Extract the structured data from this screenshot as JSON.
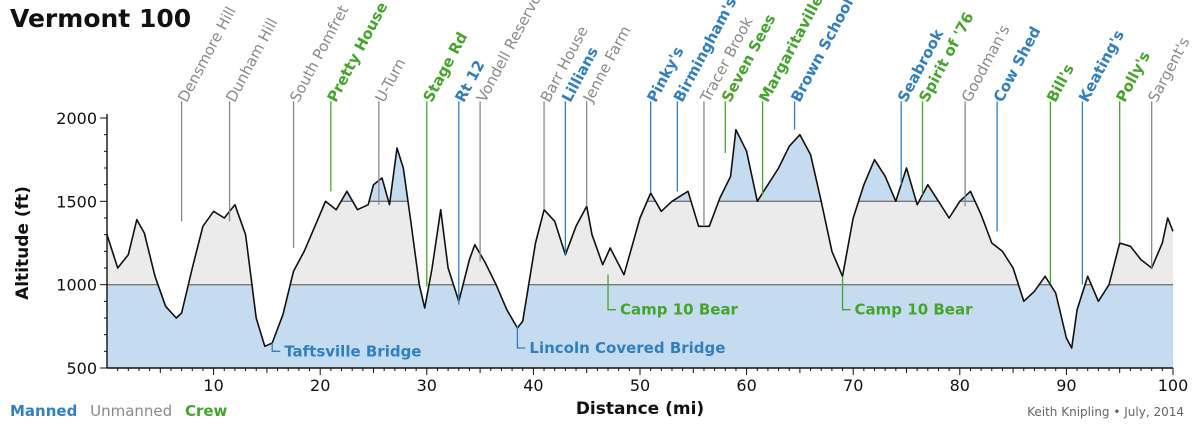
{
  "title": "Vermont 100",
  "legend": [
    {
      "label": "Manned",
      "color": "#2f7fc1"
    },
    {
      "label": "Unmanned",
      "color": "#8a8a8a"
    },
    {
      "label": "Crew",
      "color": "#44a52a"
    }
  ],
  "credit": "Keith Knipling • July, 2014",
  "chart_data": {
    "type": "area",
    "xlabel": "Distance  (mi)",
    "ylabel": "Altitude  (ft)",
    "xlim": [
      0,
      100
    ],
    "ylim": [
      500,
      2000
    ],
    "xticks": [
      10,
      20,
      30,
      40,
      50,
      60,
      70,
      80,
      90,
      100
    ],
    "yticks": [
      500,
      1000,
      1500,
      2000
    ],
    "bands": [
      1000,
      1500
    ],
    "colors": {
      "manned": "#2f7fc1",
      "unmanned": "#8a8a8a",
      "crew": "#44a52a",
      "below_band": "#c5dbef",
      "mid_band": "#ebebeb",
      "line": "#111111"
    },
    "profile": [
      [
        0,
        1300
      ],
      [
        1,
        1100
      ],
      [
        2,
        1180
      ],
      [
        2.8,
        1390
      ],
      [
        3.5,
        1310
      ],
      [
        4.5,
        1050
      ],
      [
        5.5,
        870
      ],
      [
        6.5,
        800
      ],
      [
        7,
        830
      ],
      [
        8,
        1100
      ],
      [
        9,
        1350
      ],
      [
        10,
        1440
      ],
      [
        11,
        1400
      ],
      [
        12,
        1480
      ],
      [
        13,
        1300
      ],
      [
        14,
        800
      ],
      [
        14.8,
        630
      ],
      [
        15.5,
        650
      ],
      [
        16.5,
        820
      ],
      [
        17.5,
        1080
      ],
      [
        18.5,
        1200
      ],
      [
        19.5,
        1350
      ],
      [
        20.5,
        1500
      ],
      [
        21.5,
        1450
      ],
      [
        22.5,
        1560
      ],
      [
        23.5,
        1450
      ],
      [
        24.5,
        1480
      ],
      [
        25,
        1600
      ],
      [
        25.8,
        1640
      ],
      [
        26.5,
        1480
      ],
      [
        27.2,
        1820
      ],
      [
        27.8,
        1700
      ],
      [
        28.5,
        1380
      ],
      [
        29.3,
        1000
      ],
      [
        29.8,
        860
      ],
      [
        30.5,
        1100
      ],
      [
        31.3,
        1450
      ],
      [
        32,
        1100
      ],
      [
        33,
        900
      ],
      [
        34,
        1150
      ],
      [
        34.5,
        1240
      ],
      [
        35.5,
        1130
      ],
      [
        36.5,
        1000
      ],
      [
        37.5,
        850
      ],
      [
        38.5,
        740
      ],
      [
        39,
        780
      ],
      [
        40.2,
        1250
      ],
      [
        41,
        1450
      ],
      [
        42,
        1380
      ],
      [
        43,
        1180
      ],
      [
        44,
        1350
      ],
      [
        45,
        1470
      ],
      [
        45.5,
        1300
      ],
      [
        46.5,
        1120
      ],
      [
        47.2,
        1220
      ],
      [
        48.5,
        1060
      ],
      [
        50,
        1400
      ],
      [
        51,
        1550
      ],
      [
        52,
        1440
      ],
      [
        53,
        1500
      ],
      [
        54.5,
        1560
      ],
      [
        55.5,
        1350
      ],
      [
        56.5,
        1350
      ],
      [
        57.5,
        1520
      ],
      [
        58.5,
        1650
      ],
      [
        59,
        1930
      ],
      [
        60,
        1800
      ],
      [
        61,
        1500
      ],
      [
        62,
        1600
      ],
      [
        63,
        1700
      ],
      [
        64,
        1830
      ],
      [
        65,
        1900
      ],
      [
        66,
        1780
      ],
      [
        67,
        1500
      ],
      [
        68,
        1200
      ],
      [
        69,
        1050
      ],
      [
        70,
        1400
      ],
      [
        71,
        1600
      ],
      [
        72,
        1750
      ],
      [
        73,
        1650
      ],
      [
        74,
        1500
      ],
      [
        75,
        1700
      ],
      [
        76,
        1480
      ],
      [
        77,
        1600
      ],
      [
        78,
        1500
      ],
      [
        79,
        1400
      ],
      [
        80,
        1500
      ],
      [
        81,
        1560
      ],
      [
        82,
        1420
      ],
      [
        83,
        1250
      ],
      [
        84,
        1200
      ],
      [
        85,
        1100
      ],
      [
        86,
        900
      ],
      [
        87,
        960
      ],
      [
        88,
        1050
      ],
      [
        89,
        950
      ],
      [
        90,
        680
      ],
      [
        90.5,
        620
      ],
      [
        91,
        850
      ],
      [
        92,
        1050
      ],
      [
        93,
        900
      ],
      [
        94,
        1000
      ],
      [
        95,
        1250
      ],
      [
        96,
        1230
      ],
      [
        97,
        1150
      ],
      [
        98,
        1100
      ],
      [
        99,
        1250
      ],
      [
        99.5,
        1400
      ],
      [
        100,
        1320
      ]
    ],
    "aid_stations": [
      {
        "name": "Densmore Hill",
        "mile": 7,
        "type": "unmanned",
        "pos": "top",
        "top_alt": 2100,
        "line_end_alt": 1380
      },
      {
        "name": "Dunham Hill",
        "mile": 11.5,
        "type": "unmanned",
        "pos": "top",
        "top_alt": 2100,
        "line_end_alt": 1380
      },
      {
        "name": "Taftsville Bridge",
        "mile": 15.5,
        "type": "manned",
        "pos": "bottom",
        "line_start_alt": 650,
        "line_end_alt": 600
      },
      {
        "name": "South Pomfret",
        "mile": 17.5,
        "type": "unmanned",
        "pos": "top",
        "top_alt": 2100,
        "line_end_alt": 1220
      },
      {
        "name": "Pretty House",
        "mile": 21,
        "type": "crew",
        "pos": "top",
        "top_alt": 2100,
        "line_end_alt": 1560
      },
      {
        "name": "U-Turn",
        "mile": 25.5,
        "type": "unmanned",
        "pos": "top",
        "top_alt": 2100,
        "line_end_alt": 1480
      },
      {
        "name": "Stage Rd",
        "mile": 30,
        "type": "crew",
        "pos": "top",
        "top_alt": 2100,
        "line_end_alt": 990
      },
      {
        "name": "Rt 12",
        "mile": 33,
        "type": "manned",
        "pos": "top",
        "top_alt": 2100,
        "line_end_alt": 880
      },
      {
        "name": "Vondell Reservoir",
        "mile": 35,
        "type": "unmanned",
        "pos": "top",
        "top_alt": 2100,
        "line_end_alt": 1140
      },
      {
        "name": "Lincoln Covered Bridge",
        "mile": 38.5,
        "type": "manned",
        "pos": "bottom",
        "line_start_alt": 750,
        "line_end_alt": 620
      },
      {
        "name": "Barr House",
        "mile": 41,
        "type": "unmanned",
        "pos": "top",
        "top_alt": 2100,
        "line_end_alt": 1450
      },
      {
        "name": "Lillians",
        "mile": 43,
        "type": "manned",
        "pos": "top",
        "top_alt": 2100,
        "line_end_alt": 1180
      },
      {
        "name": "Jenne Farm",
        "mile": 45,
        "type": "unmanned",
        "pos": "top",
        "top_alt": 2100,
        "line_end_alt": 1470
      },
      {
        "name": "Camp 10 Bear",
        "mile": 47,
        "type": "crew",
        "pos": "bottom",
        "line_start_alt": 1060,
        "line_end_alt": 850
      },
      {
        "name": "Pinky's",
        "mile": 51,
        "type": "manned",
        "pos": "top",
        "top_alt": 2100,
        "line_end_alt": 1550
      },
      {
        "name": "Birmingham's",
        "mile": 53.5,
        "type": "manned",
        "pos": "top",
        "top_alt": 2100,
        "line_end_alt": 1560
      },
      {
        "name": "Tracer Brook",
        "mile": 56,
        "type": "unmanned",
        "pos": "top",
        "top_alt": 2100,
        "line_end_alt": 1350
      },
      {
        "name": "Seven Sees",
        "mile": 58,
        "type": "crew",
        "pos": "top",
        "top_alt": 2100,
        "line_end_alt": 1790
      },
      {
        "name": "Margaritaville",
        "mile": 61.5,
        "type": "crew",
        "pos": "top",
        "top_alt": 2100,
        "line_end_alt": 1540
      },
      {
        "name": "Brown School",
        "mile": 64.5,
        "type": "manned",
        "pos": "top",
        "top_alt": 2100,
        "line_end_alt": 1930
      },
      {
        "name": "Camp 10 Bear",
        "mile": 69,
        "type": "crew",
        "pos": "bottom",
        "line_start_alt": 1050,
        "line_end_alt": 850
      },
      {
        "name": "Seabrook",
        "mile": 74.5,
        "type": "manned",
        "pos": "top",
        "top_alt": 2100,
        "line_end_alt": 1600
      },
      {
        "name": "Spirit of '76",
        "mile": 76.5,
        "type": "crew",
        "pos": "top",
        "top_alt": 2100,
        "line_end_alt": 1540
      },
      {
        "name": "Goodman's",
        "mile": 80.5,
        "type": "unmanned",
        "pos": "top",
        "top_alt": 2100,
        "line_end_alt": 1470
      },
      {
        "name": "Cow Shed",
        "mile": 83.5,
        "type": "manned",
        "pos": "top",
        "top_alt": 2100,
        "line_end_alt": 1320
      },
      {
        "name": "Bill's",
        "mile": 88.5,
        "type": "crew",
        "pos": "top",
        "top_alt": 2100,
        "line_end_alt": 1010
      },
      {
        "name": "Keating's",
        "mile": 91.5,
        "type": "manned",
        "pos": "top",
        "top_alt": 2100,
        "line_end_alt": 1000
      },
      {
        "name": "Polly's",
        "mile": 95,
        "type": "crew",
        "pos": "top",
        "top_alt": 2100,
        "line_end_alt": 1250
      },
      {
        "name": "Sargent's",
        "mile": 98,
        "type": "unmanned",
        "pos": "top",
        "top_alt": 2100,
        "line_end_alt": 1100
      }
    ]
  }
}
